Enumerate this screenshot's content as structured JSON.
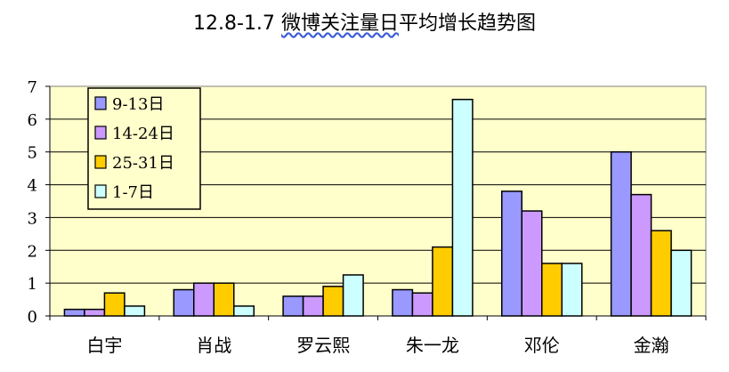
{
  "chart_data": {
    "type": "bar",
    "title_prefix": "12.8-1.7",
    "title_underlined": "微博关注量日",
    "title_suffix": "平均增长趋势图",
    "categories": [
      "白宇",
      "肖战",
      "罗云熙",
      "朱一龙",
      "邓伦",
      "金瀚"
    ],
    "series": [
      {
        "name": "9-13日",
        "color": "#9999ff",
        "values": [
          0.2,
          0.8,
          0.6,
          0.8,
          3.8,
          5.0
        ]
      },
      {
        "name": "14-24日",
        "color": "#cc99ff",
        "values": [
          0.2,
          1.0,
          0.6,
          0.7,
          3.2,
          3.7
        ]
      },
      {
        "name": "25-31日",
        "color": "#ffcc00",
        "values": [
          0.7,
          1.0,
          0.9,
          2.1,
          1.6,
          2.6
        ]
      },
      {
        "name": "1-7日",
        "color": "#ccffff",
        "values": [
          0.3,
          0.3,
          1.25,
          6.6,
          1.6,
          2.0
        ]
      }
    ],
    "ylim": [
      0,
      7
    ],
    "yticks": [
      "0",
      "1",
      "2",
      "3",
      "4",
      "5",
      "6",
      "7"
    ],
    "plot_background": "#ffffcc",
    "grid": true,
    "legend_position": "top-left"
  }
}
